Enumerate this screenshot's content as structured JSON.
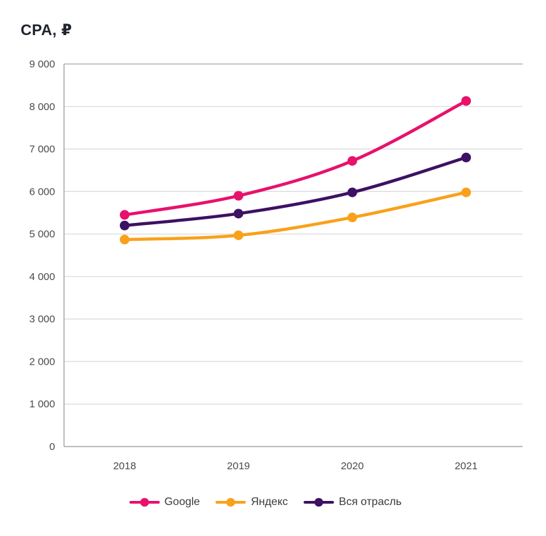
{
  "chart_data": {
    "type": "line",
    "title": "CPA, ₽",
    "categories": [
      "2018",
      "2019",
      "2020",
      "2021"
    ],
    "series": [
      {
        "name": "Google",
        "color": "#e8116c",
        "values": [
          5450,
          5900,
          6720,
          8130
        ]
      },
      {
        "name": "Яндекс",
        "color": "#f9a11b",
        "values": [
          4870,
          4970,
          5390,
          5980
        ]
      },
      {
        "name": "Вся отрасль",
        "color": "#3d1163",
        "values": [
          5200,
          5480,
          5980,
          6800
        ]
      }
    ],
    "xlabel": "",
    "ylabel": "",
    "ylim": [
      0,
      9000
    ],
    "ytick_step": 1000,
    "ytick_labels": [
      "0",
      "1 000",
      "2 000",
      "3 000",
      "4 000",
      "5 000",
      "6 000",
      "7 000",
      "8 000",
      "9 000"
    ],
    "grid": "horizontal",
    "legend_position": "bottom",
    "marker": "circle",
    "line_smoothing": true
  }
}
